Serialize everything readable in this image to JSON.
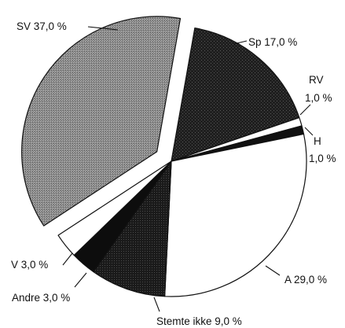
{
  "chart_data": {
    "type": "pie",
    "title": "",
    "value_unit": "%",
    "slices": [
      {
        "key": "sp",
        "label": "Sp 17,0 %",
        "value": 17.0,
        "color": "#1c1c1c",
        "fill": "pat-sp"
      },
      {
        "key": "rv",
        "label_lines": [
          "RV",
          "1,0 %"
        ],
        "value": 1.0,
        "color": "#ffffff",
        "fill": "solid"
      },
      {
        "key": "h",
        "label_lines": [
          "H",
          "1,0 %"
        ],
        "value": 1.0,
        "color": "#111111",
        "fill": "solid"
      },
      {
        "key": "a",
        "label": "A 29,0 %",
        "value": 29.0,
        "color": "#ffffff",
        "fill": "solid"
      },
      {
        "key": "stemte",
        "label": "Stemte ikke 9,0 %",
        "value": 9.0,
        "color": "#202020",
        "fill": "pat-dark"
      },
      {
        "key": "andre",
        "label": "Andre 3,0 %",
        "value": 3.0,
        "color": "#0d0d0d",
        "fill": "solid"
      },
      {
        "key": "v",
        "label": "V 3,0 %",
        "value": 3.0,
        "color": "#ffffff",
        "fill": "solid"
      },
      {
        "key": "sv",
        "label": "SV 37,0 %",
        "value": 37.0,
        "color": "#8a8a8a",
        "fill": "grad-sv",
        "exploded": true
      }
    ],
    "legend": "none"
  }
}
